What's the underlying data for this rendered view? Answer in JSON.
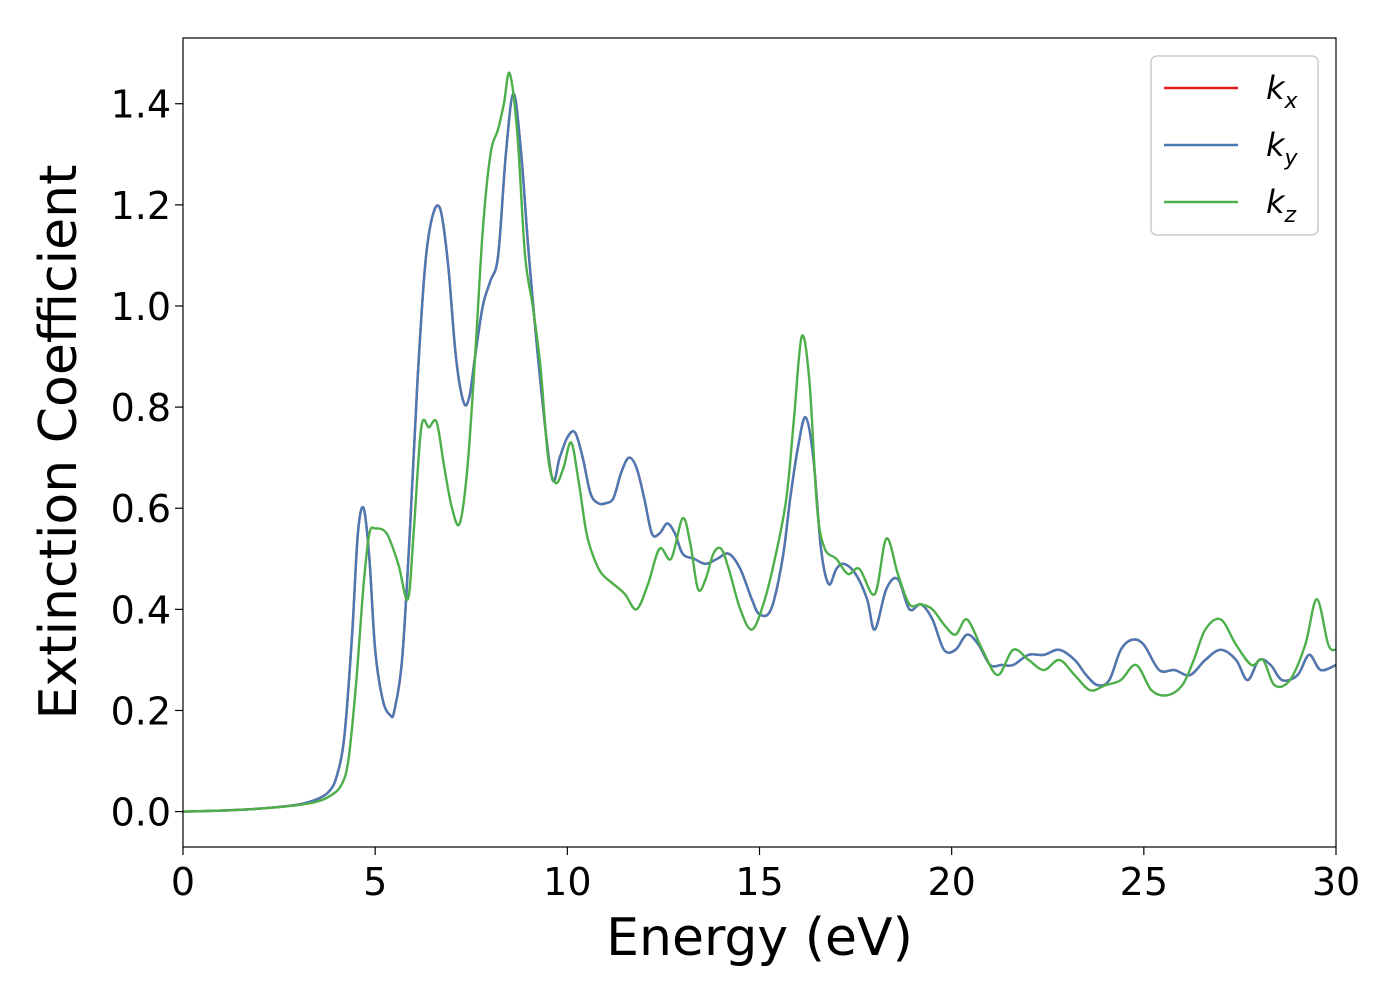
{
  "chart_data": {
    "type": "line",
    "xlabel": "Energy (eV)",
    "ylabel": "Extinction Coefficient",
    "xlim": [
      0,
      30
    ],
    "ylim": [
      -0.07,
      1.53
    ],
    "xticks": [
      0,
      5,
      10,
      15,
      20,
      25,
      30
    ],
    "xtick_labels": [
      "0",
      "5",
      "10",
      "15",
      "20",
      "25",
      "30"
    ],
    "yticks": [
      0.0,
      0.2,
      0.4,
      0.6,
      0.8,
      1.0,
      1.2,
      1.4
    ],
    "ytick_labels": [
      "0.0",
      "0.2",
      "0.4",
      "0.6",
      "0.8",
      "1.0",
      "1.2",
      "1.4"
    ],
    "grid": false,
    "legend_position": "top-right",
    "series": [
      {
        "name": "k_x",
        "label_base": "k",
        "label_sub": "x",
        "color": "#e41a1c",
        "x": [
          0,
          1,
          2,
          3,
          3.5,
          3.8,
          4.0,
          4.2,
          4.4,
          4.55,
          4.7,
          4.85,
          5.0,
          5.2,
          5.4,
          5.5,
          5.7,
          5.9,
          6.1,
          6.3,
          6.5,
          6.7,
          6.9,
          7.1,
          7.3,
          7.45,
          7.6,
          7.8,
          8.0,
          8.2,
          8.4,
          8.6,
          8.8,
          9.0,
          9.3,
          9.6,
          9.8,
          10.0,
          10.2,
          10.4,
          10.6,
          10.8,
          11.0,
          11.2,
          11.4,
          11.6,
          11.8,
          12.0,
          12.2,
          12.4,
          12.6,
          12.8,
          13.0,
          13.3,
          13.6,
          13.9,
          14.2,
          14.5,
          14.8,
          15.0,
          15.3,
          15.6,
          15.8,
          16.0,
          16.2,
          16.4,
          16.6,
          16.8,
          17.0,
          17.2,
          17.5,
          17.8,
          18.0,
          18.3,
          18.6,
          18.9,
          19.2,
          19.5,
          19.8,
          20.1,
          20.4,
          20.7,
          21.0,
          21.3,
          21.6,
          22.0,
          22.4,
          22.8,
          23.2,
          23.5,
          23.8,
          24.1,
          24.4,
          24.7,
          25.0,
          25.4,
          25.8,
          26.2,
          26.6,
          27.0,
          27.4,
          27.7,
          28.0,
          28.3,
          28.6,
          29.0,
          29.3,
          29.6,
          30.0
        ],
        "values": [
          0.0,
          0.002,
          0.006,
          0.014,
          0.025,
          0.04,
          0.07,
          0.15,
          0.35,
          0.55,
          0.6,
          0.5,
          0.32,
          0.22,
          0.19,
          0.2,
          0.3,
          0.55,
          0.85,
          1.08,
          1.18,
          1.19,
          1.08,
          0.9,
          0.81,
          0.82,
          0.9,
          1.0,
          1.05,
          1.1,
          1.3,
          1.42,
          1.3,
          1.1,
          0.85,
          0.66,
          0.7,
          0.74,
          0.75,
          0.7,
          0.63,
          0.61,
          0.61,
          0.62,
          0.67,
          0.7,
          0.68,
          0.62,
          0.55,
          0.55,
          0.57,
          0.55,
          0.51,
          0.5,
          0.49,
          0.5,
          0.51,
          0.48,
          0.42,
          0.39,
          0.4,
          0.5,
          0.62,
          0.72,
          0.78,
          0.7,
          0.52,
          0.45,
          0.48,
          0.49,
          0.47,
          0.42,
          0.36,
          0.44,
          0.46,
          0.4,
          0.41,
          0.38,
          0.32,
          0.32,
          0.35,
          0.33,
          0.29,
          0.29,
          0.29,
          0.31,
          0.31,
          0.32,
          0.3,
          0.27,
          0.25,
          0.26,
          0.32,
          0.34,
          0.33,
          0.28,
          0.28,
          0.27,
          0.3,
          0.32,
          0.3,
          0.26,
          0.3,
          0.29,
          0.26,
          0.27,
          0.31,
          0.28,
          0.29
        ]
      },
      {
        "name": "k_y",
        "label_base": "k",
        "label_sub": "y",
        "color": "#4a7ab5",
        "x": [
          0,
          1,
          2,
          3,
          3.5,
          3.8,
          4.0,
          4.2,
          4.4,
          4.55,
          4.7,
          4.85,
          5.0,
          5.2,
          5.4,
          5.5,
          5.7,
          5.9,
          6.1,
          6.3,
          6.5,
          6.7,
          6.9,
          7.1,
          7.3,
          7.45,
          7.6,
          7.8,
          8.0,
          8.2,
          8.4,
          8.6,
          8.8,
          9.0,
          9.3,
          9.6,
          9.8,
          10.0,
          10.2,
          10.4,
          10.6,
          10.8,
          11.0,
          11.2,
          11.4,
          11.6,
          11.8,
          12.0,
          12.2,
          12.4,
          12.6,
          12.8,
          13.0,
          13.3,
          13.6,
          13.9,
          14.2,
          14.5,
          14.8,
          15.0,
          15.3,
          15.6,
          15.8,
          16.0,
          16.2,
          16.4,
          16.6,
          16.8,
          17.0,
          17.2,
          17.5,
          17.8,
          18.0,
          18.3,
          18.6,
          18.9,
          19.2,
          19.5,
          19.8,
          20.1,
          20.4,
          20.7,
          21.0,
          21.3,
          21.6,
          22.0,
          22.4,
          22.8,
          23.2,
          23.5,
          23.8,
          24.1,
          24.4,
          24.7,
          25.0,
          25.4,
          25.8,
          26.2,
          26.6,
          27.0,
          27.4,
          27.7,
          28.0,
          28.3,
          28.6,
          29.0,
          29.3,
          29.6,
          30.0
        ],
        "values": [
          0.0,
          0.002,
          0.006,
          0.014,
          0.025,
          0.04,
          0.07,
          0.15,
          0.35,
          0.55,
          0.6,
          0.5,
          0.32,
          0.22,
          0.19,
          0.2,
          0.3,
          0.55,
          0.85,
          1.08,
          1.18,
          1.19,
          1.08,
          0.9,
          0.81,
          0.82,
          0.9,
          1.0,
          1.05,
          1.1,
          1.3,
          1.42,
          1.3,
          1.1,
          0.85,
          0.66,
          0.7,
          0.74,
          0.75,
          0.7,
          0.63,
          0.61,
          0.61,
          0.62,
          0.67,
          0.7,
          0.68,
          0.62,
          0.55,
          0.55,
          0.57,
          0.55,
          0.51,
          0.5,
          0.49,
          0.5,
          0.51,
          0.48,
          0.42,
          0.39,
          0.4,
          0.5,
          0.62,
          0.72,
          0.78,
          0.7,
          0.52,
          0.45,
          0.48,
          0.49,
          0.47,
          0.42,
          0.36,
          0.44,
          0.46,
          0.4,
          0.41,
          0.38,
          0.32,
          0.32,
          0.35,
          0.33,
          0.29,
          0.29,
          0.29,
          0.31,
          0.31,
          0.32,
          0.3,
          0.27,
          0.25,
          0.26,
          0.32,
          0.34,
          0.33,
          0.28,
          0.28,
          0.27,
          0.3,
          0.32,
          0.3,
          0.26,
          0.3,
          0.29,
          0.26,
          0.27,
          0.31,
          0.28,
          0.29
        ]
      },
      {
        "name": "k_z",
        "label_base": "k",
        "label_sub": "z",
        "color": "#4daf4a",
        "x": [
          0,
          1,
          2,
          3,
          3.5,
          3.8,
          4.1,
          4.3,
          4.5,
          4.7,
          4.85,
          5.0,
          5.3,
          5.6,
          5.85,
          6.0,
          6.2,
          6.4,
          6.6,
          6.8,
          7.0,
          7.2,
          7.4,
          7.6,
          7.8,
          8.0,
          8.2,
          8.35,
          8.5,
          8.7,
          8.9,
          9.1,
          9.3,
          9.5,
          9.7,
          9.9,
          10.1,
          10.3,
          10.5,
          10.7,
          10.9,
          11.2,
          11.5,
          11.8,
          12.1,
          12.4,
          12.7,
          13.0,
          13.2,
          13.4,
          13.6,
          13.8,
          14.0,
          14.2,
          14.5,
          14.8,
          15.1,
          15.4,
          15.7,
          15.9,
          16.1,
          16.3,
          16.5,
          16.7,
          17.0,
          17.3,
          17.6,
          18.0,
          18.3,
          18.6,
          18.9,
          19.2,
          19.5,
          19.8,
          20.1,
          20.4,
          20.8,
          21.2,
          21.6,
          22.0,
          22.4,
          22.8,
          23.2,
          23.6,
          24.0,
          24.4,
          24.8,
          25.2,
          25.6,
          26.0,
          26.3,
          26.6,
          27.0,
          27.4,
          27.8,
          28.1,
          28.4,
          28.8,
          29.2,
          29.5,
          29.8,
          30.0
        ],
        "values": [
          0.0,
          0.002,
          0.006,
          0.013,
          0.02,
          0.03,
          0.05,
          0.1,
          0.25,
          0.45,
          0.55,
          0.56,
          0.55,
          0.49,
          0.42,
          0.55,
          0.76,
          0.76,
          0.77,
          0.68,
          0.6,
          0.57,
          0.68,
          0.9,
          1.15,
          1.3,
          1.35,
          1.4,
          1.46,
          1.34,
          1.1,
          1.0,
          0.88,
          0.7,
          0.65,
          0.68,
          0.73,
          0.65,
          0.55,
          0.5,
          0.47,
          0.45,
          0.43,
          0.4,
          0.45,
          0.52,
          0.5,
          0.58,
          0.53,
          0.44,
          0.46,
          0.51,
          0.52,
          0.48,
          0.4,
          0.36,
          0.41,
          0.5,
          0.62,
          0.78,
          0.94,
          0.85,
          0.6,
          0.52,
          0.5,
          0.47,
          0.48,
          0.43,
          0.54,
          0.47,
          0.41,
          0.41,
          0.4,
          0.37,
          0.35,
          0.38,
          0.32,
          0.27,
          0.32,
          0.3,
          0.28,
          0.3,
          0.27,
          0.24,
          0.25,
          0.26,
          0.29,
          0.24,
          0.23,
          0.25,
          0.3,
          0.36,
          0.38,
          0.33,
          0.29,
          0.3,
          0.25,
          0.26,
          0.33,
          0.42,
          0.33,
          0.32
        ]
      }
    ]
  }
}
